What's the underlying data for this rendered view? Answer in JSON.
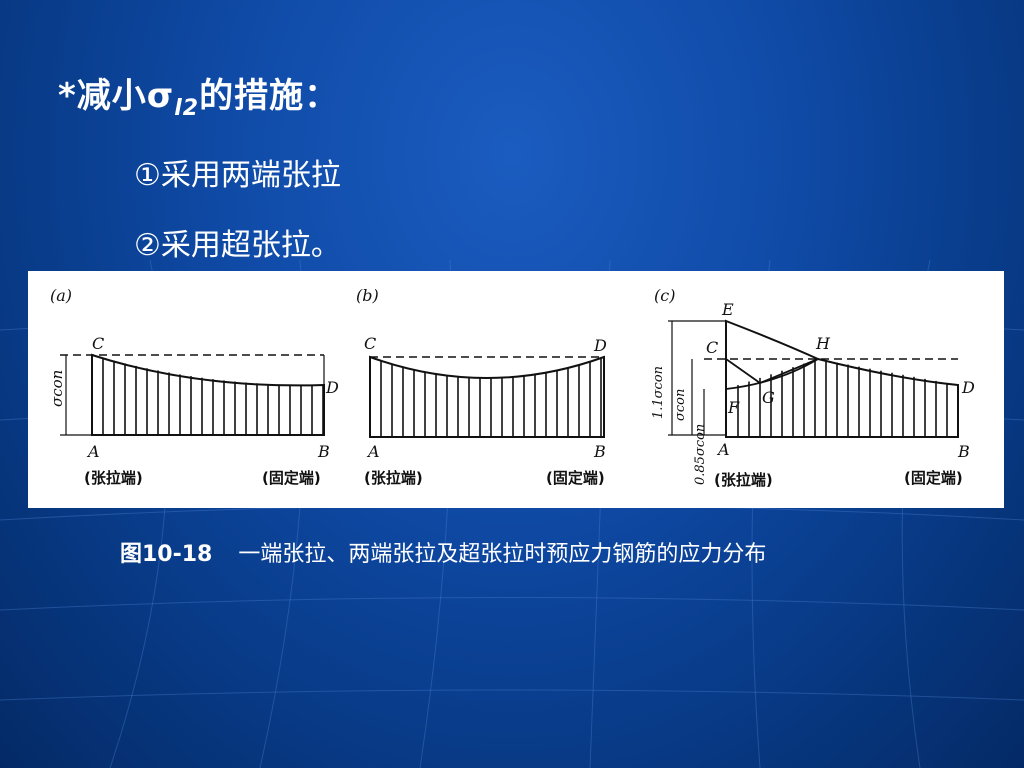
{
  "slide": {
    "title": {
      "prefix": "*减小σ",
      "subscript": "l2",
      "suffix": "的措施："
    },
    "bullets": [
      "①采用两端张拉",
      "②采用超张拉。"
    ],
    "caption": {
      "number": "图10-18",
      "text": "一端张拉、两端张拉及超张拉时预应力钢筋的应力分布"
    }
  },
  "figure": {
    "panels": [
      {
        "label": "(a)",
        "points": {
          "C": "C",
          "D": "D",
          "A": "A",
          "B": "B"
        },
        "axis_label": "σcon",
        "left_caption": "(张拉端)",
        "right_caption": "(固定端)"
      },
      {
        "label": "(b)",
        "points": {
          "C": "C",
          "D": "D",
          "A": "A",
          "B": "B"
        },
        "left_caption": "(张拉端)",
        "right_caption": "(固定端)"
      },
      {
        "label": "(c)",
        "points": {
          "E": "E",
          "C": "C",
          "H": "H",
          "D": "D",
          "F": "F",
          "G": "G",
          "A": "A",
          "B": "B"
        },
        "axis_labels": [
          "1.1σcon",
          "σcon",
          "0.85σcon"
        ],
        "left_caption": "(张拉端)",
        "right_caption": "(固定端)"
      }
    ]
  }
}
